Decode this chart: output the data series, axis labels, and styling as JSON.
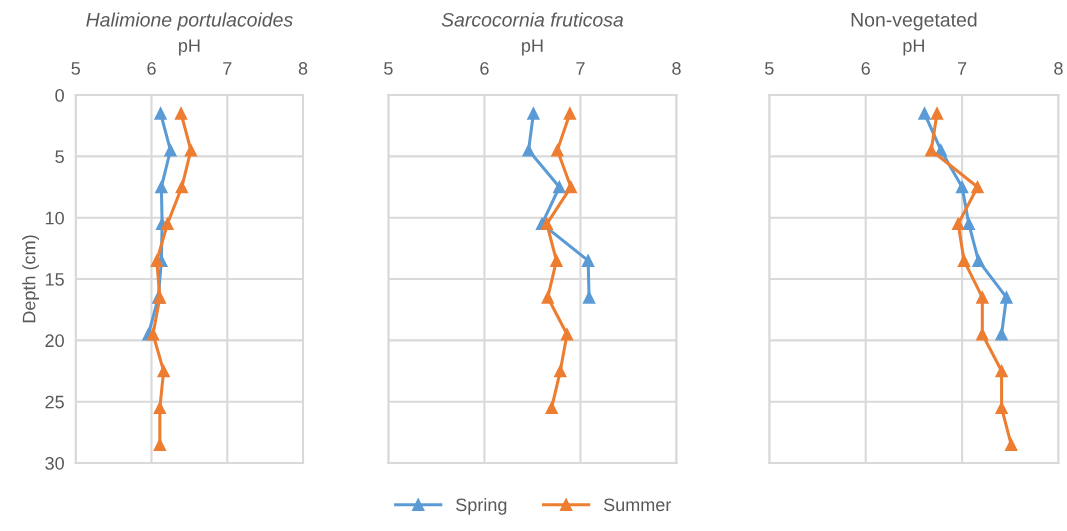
{
  "chart_data": [
    {
      "type": "line",
      "title": "Halimione portulacoides",
      "xlabel": "pH",
      "ylabel": "Depth (cm)",
      "xlim": [
        5,
        8
      ],
      "xticks": [
        5,
        6,
        7,
        8
      ],
      "ylim": [
        30,
        0
      ],
      "yticks": [
        0,
        5,
        10,
        15,
        20,
        25,
        30
      ],
      "grid": true,
      "marker": "triangle",
      "line_style": "solid",
      "legend": "bottom",
      "series": [
        {
          "name": "Spring",
          "color": "#5b9bd5",
          "x": [
            6.12,
            6.25,
            6.13,
            6.14,
            6.13,
            6.09,
            5.96
          ],
          "values": [
            1.5,
            4.5,
            7.5,
            10.5,
            13.5,
            16.5,
            19.5
          ]
        },
        {
          "name": "Summer",
          "color": "#ed7d31",
          "x": [
            6.39,
            6.52,
            6.4,
            6.21,
            6.07,
            6.11,
            6.02,
            6.16,
            6.11,
            6.11
          ],
          "values": [
            1.5,
            4.5,
            7.5,
            10.5,
            13.5,
            16.5,
            19.5,
            22.5,
            25.5,
            28.5
          ]
        }
      ]
    },
    {
      "type": "line",
      "title": "Sarcocornia fruticosa",
      "xlabel": "pH",
      "xlim": [
        5,
        8
      ],
      "xticks": [
        5,
        6,
        7,
        8
      ],
      "ylim": [
        30,
        0
      ],
      "yticks": [
        0,
        5,
        10,
        15,
        20,
        25,
        30
      ],
      "tick_labels": "x",
      "grid": true,
      "marker": "triangle",
      "line_style": "solid",
      "series": [
        {
          "color": "#5b9bd5",
          "x": [
            6.51,
            6.46,
            6.78,
            6.6,
            7.08,
            7.09
          ],
          "values": [
            1.5,
            4.5,
            7.5,
            10.5,
            13.5,
            16.5
          ]
        },
        {
          "color": "#ed7d31",
          "x": [
            6.89,
            6.76,
            6.9,
            6.65,
            6.75,
            6.66,
            6.86,
            6.79,
            6.7
          ],
          "values": [
            1.5,
            4.5,
            7.5,
            10.5,
            13.5,
            16.5,
            19.5,
            22.5,
            25.5
          ]
        }
      ]
    },
    {
      "type": "line",
      "title": "Non-vegetated",
      "xlabel": "pH",
      "xlim": [
        5,
        8
      ],
      "xticks": [
        5,
        6,
        7,
        8
      ],
      "ylim": [
        30,
        0
      ],
      "yticks": [
        0,
        5,
        10,
        15,
        20,
        25,
        30
      ],
      "tick_labels": "x",
      "grid": true,
      "marker": "triangle",
      "line_style": "solid",
      "series": [
        {
          "color": "#5b9bd5",
          "x": [
            6.61,
            6.78,
            7.0,
            7.07,
            7.17,
            7.46,
            7.41
          ],
          "values": [
            1.5,
            4.5,
            7.5,
            10.5,
            13.5,
            16.5,
            19.5
          ]
        },
        {
          "color": "#ed7d31",
          "x": [
            6.74,
            6.68,
            7.16,
            6.96,
            7.02,
            7.21,
            7.21,
            7.41,
            7.41,
            7.51
          ],
          "values": [
            1.5,
            4.5,
            7.5,
            10.5,
            13.5,
            16.5,
            19.5,
            22.5,
            25.5,
            28.5
          ]
        }
      ]
    }
  ]
}
